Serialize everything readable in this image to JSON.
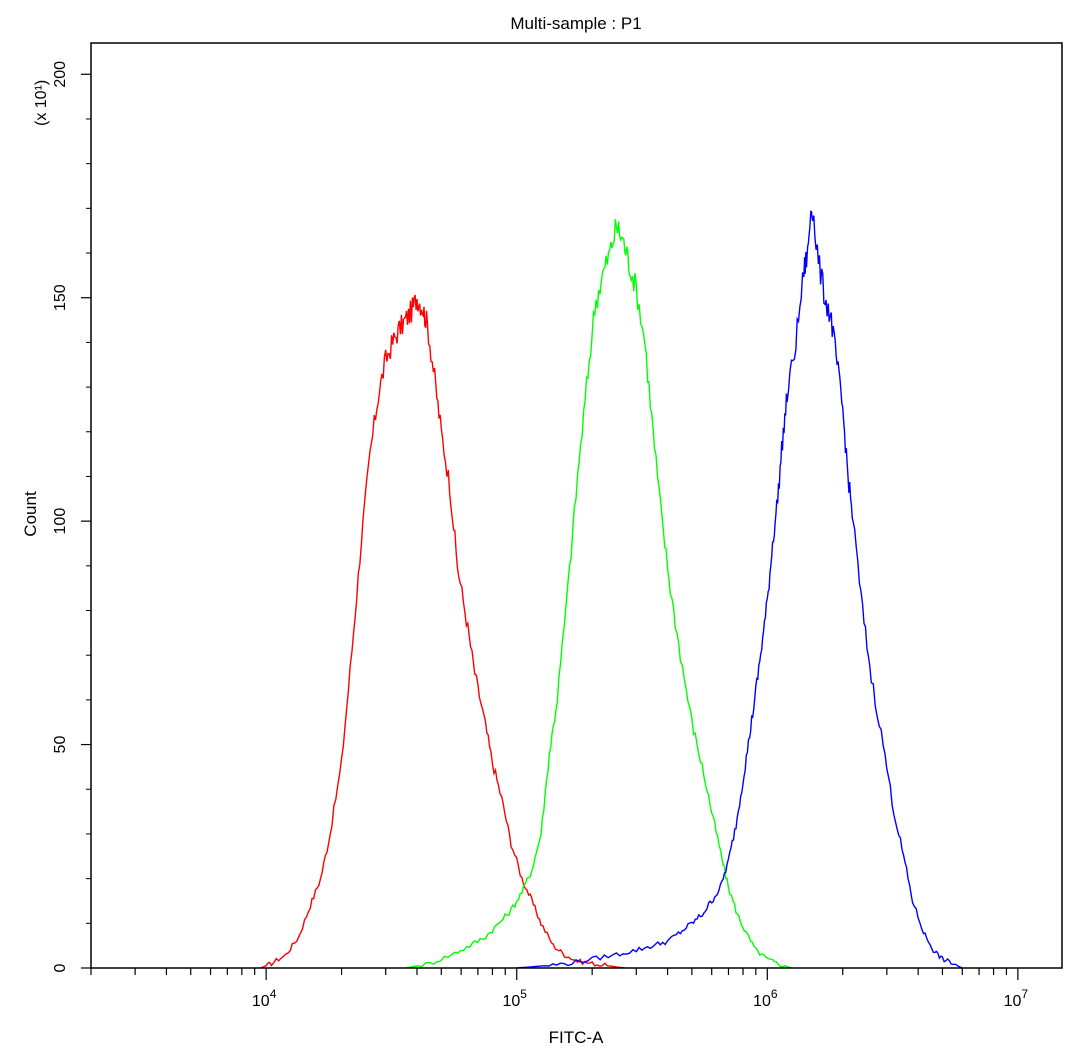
{
  "chart_data": {
    "type": "line",
    "title": "Multi-sample : P1",
    "xlabel": "FITC-A",
    "ylabel": "Count",
    "y_multiplier": "(x 10¹)",
    "x_scale": "log",
    "xlim": [
      2000,
      15000000
    ],
    "ylim": [
      0,
      207
    ],
    "grid": false,
    "y_ticks": [
      0,
      50,
      100,
      150,
      200
    ],
    "y_tick_labels": [
      "0",
      "50",
      "100",
      "150",
      "200"
    ],
    "x_ticks": [
      10000,
      100000,
      1000000,
      10000000
    ],
    "x_tick_labels": [
      {
        "base": "10",
        "exp": "4"
      },
      {
        "base": "10",
        "exp": "5"
      },
      {
        "base": "10",
        "exp": "6"
      },
      {
        "base": "10",
        "exp": "7"
      }
    ],
    "series": [
      {
        "color": "#ff0000",
        "x": [
          9500,
          10500,
          12000,
          13500,
          15000,
          16500,
          18000,
          20000,
          22000,
          24000,
          26000,
          28000,
          30000,
          32000,
          34000,
          36000,
          38000,
          40000,
          42000,
          44000,
          47000,
          50000,
          54000,
          58000,
          63000,
          68000,
          74000,
          80000,
          87000,
          95000,
          105000,
          115000,
          125000,
          140000,
          155000,
          175000,
          200000,
          230000,
          270000
        ],
        "y": [
          0,
          1,
          3,
          7,
          14,
          20,
          30,
          46,
          71,
          96,
          115,
          128,
          136,
          140,
          143,
          145,
          147,
          150,
          148,
          144,
          132,
          120,
          108,
          90,
          78,
          66,
          56,
          46,
          38,
          28,
          20,
          15,
          10,
          5,
          3,
          1.5,
          1,
          0.5,
          0
        ]
      },
      {
        "color": "#00ff00",
        "x": [
          36000,
          45000,
          55000,
          65000,
          75000,
          85000,
          95000,
          105000,
          115000,
          125000,
          135000,
          145000,
          160000,
          175000,
          190000,
          205000,
          220000,
          235000,
          250000,
          265000,
          280000,
          300000,
          325000,
          350000,
          380000,
          410000,
          450000,
          500000,
          550000,
          600000,
          650000,
          700000,
          760000,
          820000,
          900000,
          1000000,
          1100000,
          1250000
        ],
        "y": [
          0,
          1,
          3,
          5,
          7,
          10,
          13,
          17,
          22,
          30,
          48,
          60,
          85,
          110,
          130,
          148,
          155,
          160,
          166,
          163,
          158,
          152,
          140,
          120,
          100,
          85,
          70,
          55,
          45,
          35,
          26,
          18,
          12,
          8,
          4,
          2,
          1,
          0
        ]
      },
      {
        "color": "#0000ff",
        "x": [
          100000,
          130000,
          160000,
          200000,
          250000,
          300000,
          350000,
          400000,
          450000,
          500000,
          550000,
          600000,
          650000,
          700000,
          750000,
          800000,
          850000,
          900000,
          950000,
          1000000,
          1050000,
          1100000,
          1150000,
          1200000,
          1300000,
          1400000,
          1450000,
          1500000,
          1600000,
          1700000,
          1800000,
          1900000,
          2000000,
          2100000,
          2200000,
          2400000,
          2600000,
          2900000,
          3200000,
          3500000,
          3800000,
          4200000,
          4600000,
          5000000,
          5500000,
          6000000
        ],
        "y": [
          0,
          0.5,
          1,
          2,
          3,
          4,
          5,
          6,
          8,
          10,
          12,
          15,
          18,
          24,
          32,
          42,
          52,
          62,
          72,
          82,
          95,
          105,
          118,
          128,
          140,
          156,
          160,
          172,
          158,
          150,
          145,
          135,
          125,
          110,
          100,
          80,
          65,
          50,
          35,
          25,
          15,
          8,
          4,
          2,
          1,
          0
        ]
      }
    ]
  }
}
